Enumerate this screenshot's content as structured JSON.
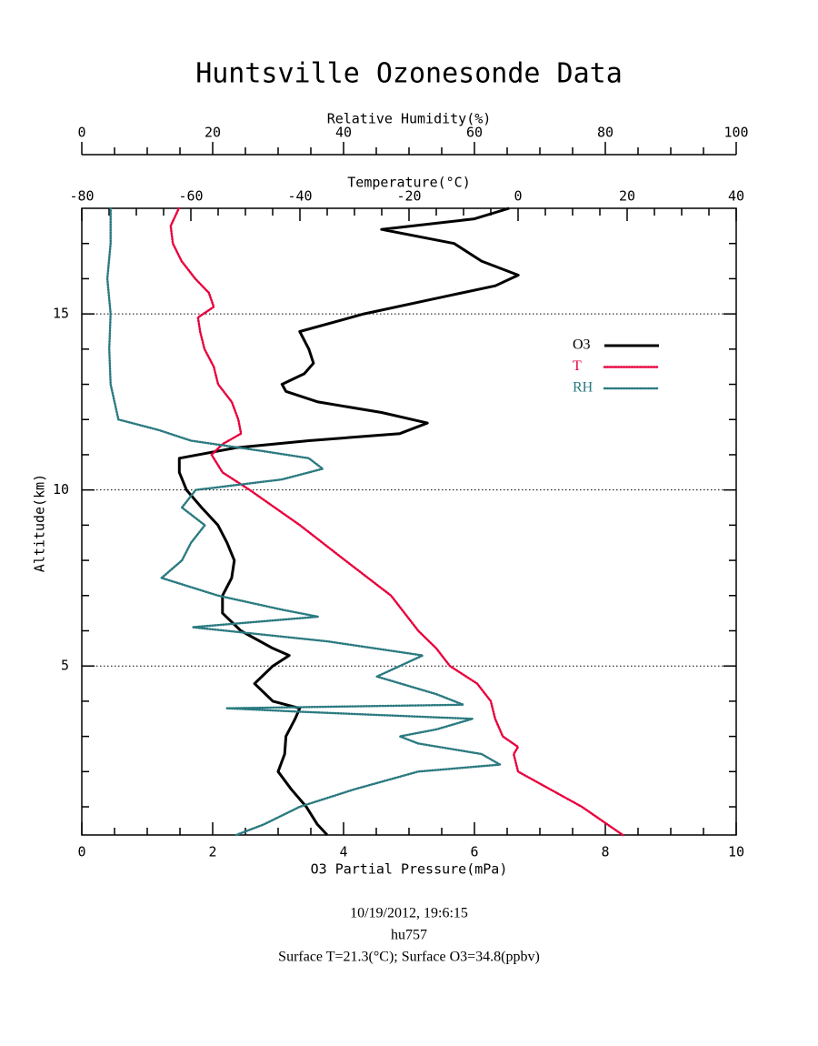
{
  "chart_data": {
    "type": "profile",
    "title": "Huntsville Ozonesonde Data",
    "ylabel": "Altitude(km)",
    "ylim": [
      0.2,
      18
    ],
    "yticks": [
      5,
      10,
      15
    ],
    "yminorticks": [
      1,
      2,
      3,
      4,
      6,
      7,
      8,
      9,
      11,
      12,
      13,
      14,
      16,
      17
    ],
    "grid": true,
    "xlabel": "O3 Partial Pressure(mPa)",
    "xlim": [
      0,
      10
    ],
    "xticks": [
      0,
      2,
      4,
      6,
      8,
      10
    ],
    "xminorticks": [
      0.5,
      1,
      1.5,
      2.5,
      3,
      3.5,
      4.5,
      5,
      5.5,
      6.5,
      7,
      7.5,
      8.5,
      9,
      9.5
    ],
    "x2label": "Temperature(°C)",
    "x2lim": [
      -80,
      40
    ],
    "x2ticks": [
      -80,
      -60,
      -40,
      -20,
      0,
      20,
      40
    ],
    "x2minorticks": [
      -75,
      -70,
      -65,
      -55,
      -50,
      -45,
      -35,
      -30,
      -25,
      -15,
      -10,
      -5,
      5,
      10,
      15,
      25,
      30,
      35
    ],
    "x3label": "Relative Humidity(%)",
    "x3lim": [
      0,
      100
    ],
    "x3ticks": [
      0,
      20,
      40,
      60,
      80,
      100
    ],
    "x3minorticks": [
      5,
      10,
      15,
      25,
      30,
      35,
      45,
      50,
      55,
      65,
      70,
      75,
      85,
      90,
      95
    ],
    "series": [
      {
        "name": "O3",
        "color": "#000000",
        "axis": "x",
        "altitude": [
          0.2,
          0.5,
          1,
          1.5,
          2,
          2.5,
          3,
          3.5,
          3.8,
          4,
          4.5,
          5,
          5.3,
          5.5,
          6,
          6.5,
          7,
          7.5,
          8,
          8.5,
          9,
          9.5,
          10,
          10.5,
          10.9,
          11.2,
          11.4,
          11.6,
          11.9,
          12.2,
          12.5,
          12.8,
          13,
          13.3,
          13.6,
          14,
          14.5,
          15,
          15.5,
          15.8,
          16.1,
          16.5,
          17,
          17.4,
          17.7,
          18
        ],
        "values": [
          3.75,
          3.6,
          3.43,
          3.2,
          3.0,
          3.1,
          3.12,
          3.26,
          3.33,
          2.92,
          2.64,
          2.92,
          3.17,
          2.92,
          2.43,
          2.15,
          2.15,
          2.29,
          2.33,
          2.22,
          2.08,
          1.83,
          1.6,
          1.49,
          1.49,
          2.36,
          3.47,
          4.86,
          5.28,
          4.58,
          3.61,
          3.12,
          3.06,
          3.4,
          3.54,
          3.47,
          3.33,
          4.31,
          5.56,
          6.32,
          6.67,
          6.11,
          5.69,
          4.58,
          6.0,
          6.53
        ]
      },
      {
        "name": "T",
        "color": "#e8003c",
        "axis": "x2",
        "altitude": [
          0.2,
          1,
          2,
          2.5,
          2.7,
          3,
          3.5,
          4,
          4.5,
          5,
          5.5,
          6,
          7,
          8,
          9,
          10,
          10.5,
          11,
          11.3,
          11.6,
          12,
          12.5,
          13,
          13.5,
          14,
          14.5,
          14.9,
          15.2,
          15.6,
          16,
          16.5,
          17,
          17.5,
          18
        ],
        "values": [
          19.2,
          11.7,
          0,
          -0.8,
          0,
          -2.8,
          -4.2,
          -5,
          -7.5,
          -12.5,
          -15,
          -18.3,
          -23.3,
          -31.7,
          -40,
          -49.2,
          -54.2,
          -56.2,
          -54.2,
          -50.8,
          -51.3,
          -52.5,
          -55,
          -55.8,
          -57.5,
          -58.3,
          -58.7,
          -55.8,
          -56.7,
          -59.2,
          -61.7,
          -63.3,
          -63.7,
          -62.2
        ]
      },
      {
        "name": "RH",
        "color": "#2a7a80",
        "axis": "x3",
        "altitude": [
          0.2,
          0.5,
          1,
          1.5,
          2,
          2.2,
          2.5,
          2.8,
          3,
          3.2,
          3.5,
          3.7,
          3.8,
          3.9,
          4.2,
          4.7,
          5,
          5.3,
          5.7,
          6.1,
          6.4,
          6.6,
          7,
          7.5,
          8,
          8.5,
          9,
          9.5,
          10,
          10.3,
          10.6,
          10.9,
          11.1,
          11.4,
          11.7,
          12,
          13,
          14,
          15,
          16,
          17,
          18
        ],
        "values": [
          23.6,
          27.8,
          33.3,
          41.7,
          51.4,
          63.9,
          61.1,
          51.4,
          48.6,
          54.2,
          59.7,
          33.3,
          22.2,
          58.3,
          54.2,
          45.1,
          48.6,
          52.1,
          37.5,
          16.9,
          36.1,
          30.6,
          20.8,
          12.2,
          15.3,
          16.7,
          18.8,
          15.3,
          17.4,
          30.6,
          36.8,
          34.7,
          27.8,
          16.7,
          11.8,
          5.6,
          4.4,
          4.2,
          4.4,
          3.9,
          4.4,
          4.4
        ]
      }
    ],
    "footer": [
      "10/19/2012, 19:6:15",
      "hu757",
      "Surface T=21.3(°C); Surface O3=34.8(ppbv)"
    ]
  }
}
